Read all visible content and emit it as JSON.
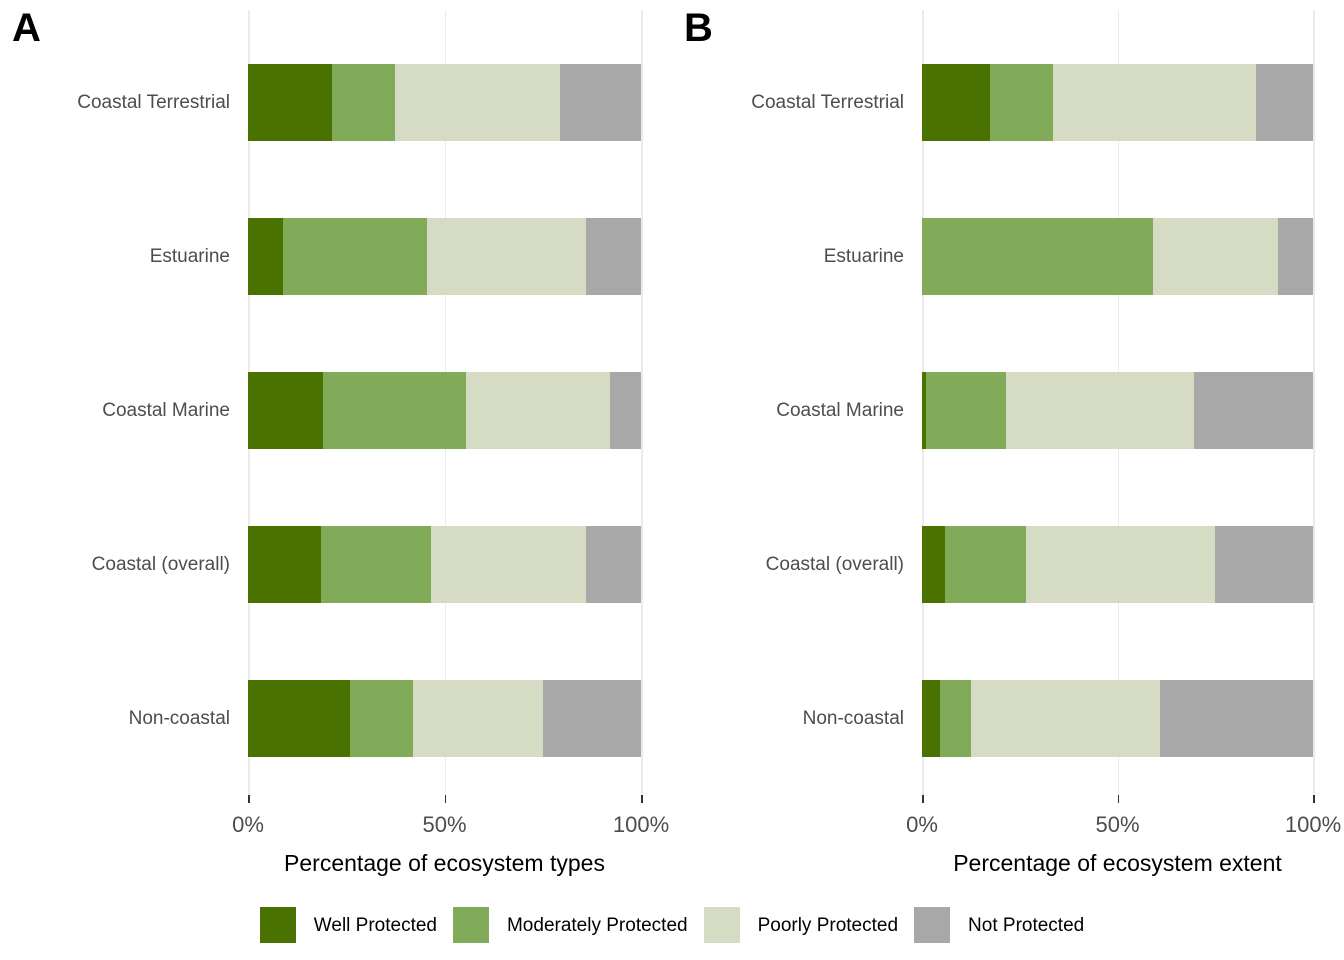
{
  "figure": {
    "background": "#ffffff"
  },
  "chart_data": [
    {
      "type": "bar",
      "orientation": "horizontal",
      "stacked": true,
      "panel_tag": "A",
      "xlabel": "Percentage of ecosystem types",
      "categories": [
        "Coastal Terrestrial",
        "Estuarine",
        "Coastal Marine",
        "Coastal (overall)",
        "Non-coastal"
      ],
      "series": [
        {
          "name": "Well Protected",
          "values": [
            21.5,
            9,
            19,
            18.5,
            26
          ]
        },
        {
          "name": "Moderately Protected",
          "values": [
            16,
            36.5,
            36.5,
            28,
            16
          ]
        },
        {
          "name": "Poorly Protected",
          "values": [
            42,
            40.5,
            36.5,
            39.5,
            33
          ]
        },
        {
          "name": "Not Protected",
          "values": [
            20.5,
            14,
            8,
            14,
            25
          ]
        }
      ],
      "x_ticks": [
        "0%",
        "50%",
        "100%"
      ],
      "xlim": [
        0,
        100
      ],
      "grid": "major-x-only",
      "legend_position": "bottom-shared"
    },
    {
      "type": "bar",
      "orientation": "horizontal",
      "stacked": true,
      "panel_tag": "B",
      "xlabel": "Percentage of ecosystem extent",
      "categories": [
        "Coastal Terrestrial",
        "Estuarine",
        "Coastal Marine",
        "Coastal (overall)",
        "Non-coastal"
      ],
      "series": [
        {
          "name": "Well Protected",
          "values": [
            17.5,
            0,
            1,
            6,
            4.5
          ]
        },
        {
          "name": "Moderately Protected",
          "values": [
            16,
            59,
            20.5,
            20.5,
            8
          ]
        },
        {
          "name": "Poorly Protected",
          "values": [
            52,
            32,
            48,
            48.5,
            48.5
          ]
        },
        {
          "name": "Not Protected",
          "values": [
            14.5,
            9,
            30.5,
            25,
            39
          ]
        }
      ],
      "x_ticks": [
        "0%",
        "50%",
        "100%"
      ],
      "xlim": [
        0,
        100
      ],
      "grid": "major-x-only",
      "legend_position": "bottom-shared"
    }
  ],
  "legend": {
    "items": [
      {
        "label": "Well Protected",
        "color": "#4a7201"
      },
      {
        "label": "Moderately Protected",
        "color": "#81aa59"
      },
      {
        "label": "Poorly Protected",
        "color": "#d6dcc4"
      },
      {
        "label": "Not Protected",
        "color": "#a8a8a8"
      }
    ]
  },
  "style_colors": {
    "gridline": "#ebebeb",
    "axis_tick": "#333333",
    "axis_text": "#4d4d4d",
    "axis_title": "#000000"
  }
}
